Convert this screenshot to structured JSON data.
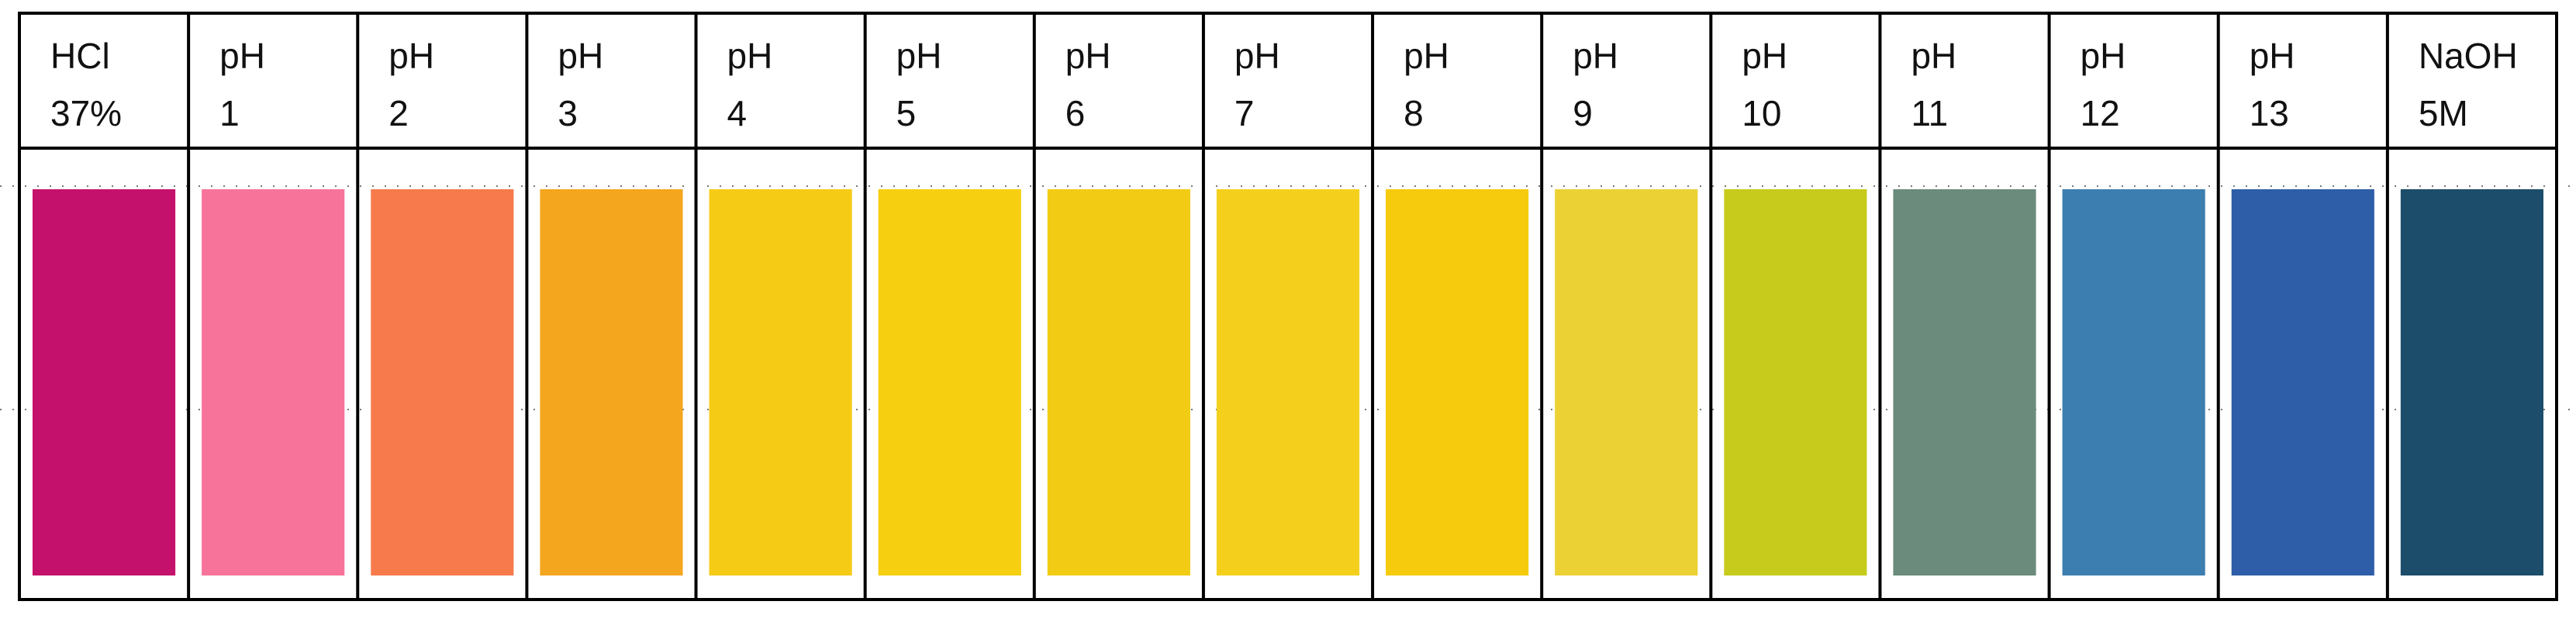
{
  "columns": [
    {
      "label": [
        "HCl",
        "37%"
      ],
      "color": "#c4126c"
    },
    {
      "label": [
        "pH",
        "1"
      ],
      "color": "#f7739a"
    },
    {
      "label": [
        "pH",
        "2"
      ],
      "color": "#f77a4c"
    },
    {
      "label": [
        "pH",
        "3"
      ],
      "color": "#f4a61e"
    },
    {
      "label": [
        "pH",
        "4"
      ],
      "color": "#f5cb16"
    },
    {
      "label": [
        "pH",
        "5"
      ],
      "color": "#f6cf10"
    },
    {
      "label": [
        "pH",
        "6"
      ],
      "color": "#f2cc14"
    },
    {
      "label": [
        "pH",
        "7"
      ],
      "color": "#f4d01c"
    },
    {
      "label": [
        "pH",
        "8"
      ],
      "color": "#f6cb0e"
    },
    {
      "label": [
        "pH",
        "9"
      ],
      "color": "#ecd134"
    },
    {
      "label": [
        "pH",
        "10"
      ],
      "color": "#c6cb1c"
    },
    {
      "label": [
        "pH",
        "11"
      ],
      "color": "#6b8b7c"
    },
    {
      "label": [
        "pH",
        "12"
      ],
      "color": "#3d7eb0"
    },
    {
      "label": [
        "pH",
        "13"
      ],
      "color": "#2e5ea8"
    },
    {
      "label": [
        "NaOH",
        "5M"
      ],
      "color": "#1c4d6a"
    }
  ]
}
